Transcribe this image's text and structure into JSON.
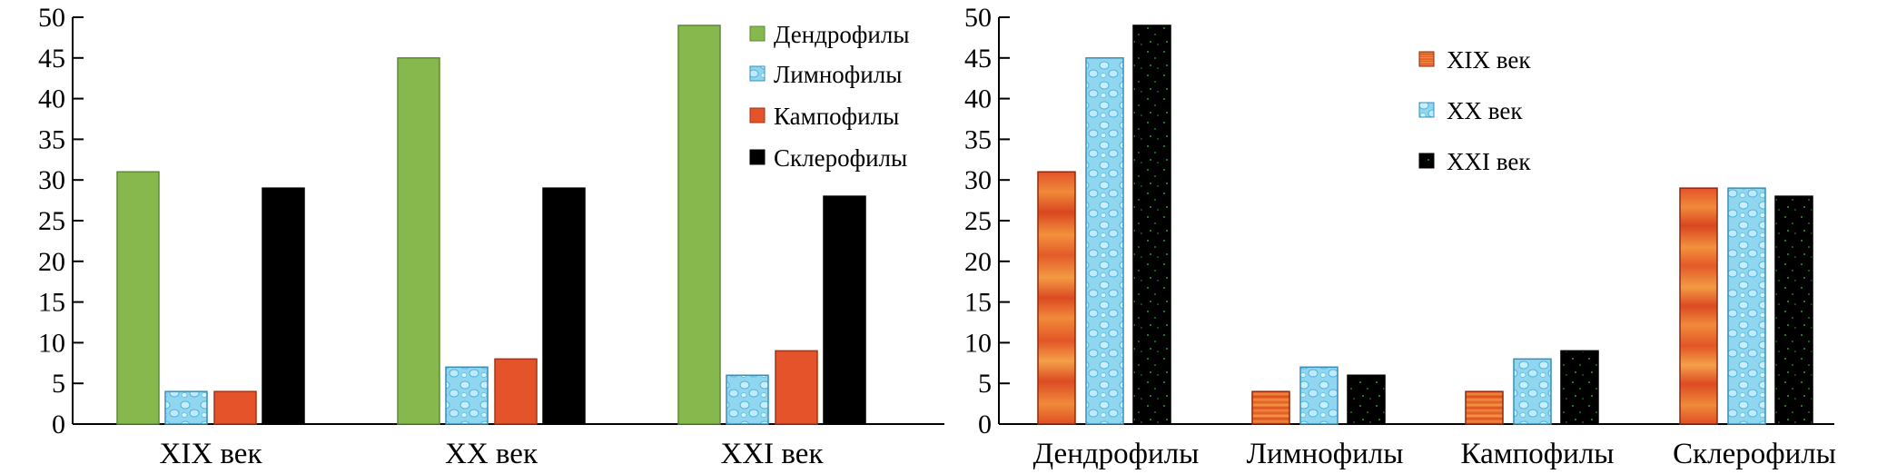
{
  "chart_data": [
    {
      "type": "bar",
      "categories": [
        "XIX век",
        "XX век",
        "XXI век"
      ],
      "series": [
        {
          "name": "Дендрофилы",
          "values": [
            31,
            45,
            49
          ]
        },
        {
          "name": "Лимнофилы",
          "values": [
            4,
            7,
            6
          ]
        },
        {
          "name": "Кампофилы",
          "values": [
            4,
            8,
            9
          ]
        },
        {
          "name": "Склерофилы",
          "values": [
            29,
            29,
            28
          ]
        }
      ],
      "ylim": [
        0,
        50
      ],
      "yticks": [
        0,
        5,
        10,
        15,
        20,
        25,
        30,
        35,
        40,
        45,
        50
      ],
      "legend_position": "top-right",
      "grid": false
    },
    {
      "type": "bar",
      "categories": [
        "Дендрофилы",
        "Лимнофилы",
        "Кампофилы",
        "Склерофилы"
      ],
      "series": [
        {
          "name": "XIX век",
          "values": [
            31,
            4,
            4,
            29
          ]
        },
        {
          "name": "XX век",
          "values": [
            45,
            7,
            8,
            29
          ]
        },
        {
          "name": "XXI век",
          "values": [
            49,
            6,
            9,
            28
          ]
        }
      ],
      "ylim": [
        0,
        50
      ],
      "yticks": [
        0,
        5,
        10,
        15,
        20,
        25,
        30,
        35,
        40,
        45,
        50
      ],
      "legend_position": "top-right",
      "grid": false
    }
  ],
  "colors": {
    "dendrophiles_green": "#86b84e",
    "limnophiles_blue": "#8fd6ee",
    "campophiles_red": "#e4532a",
    "sclerophiles_black": "#000000",
    "orange_texture": "#ec6a2c",
    "blue_texture": "#9fdcf2",
    "black_green_speck": "#2a9d2a"
  }
}
